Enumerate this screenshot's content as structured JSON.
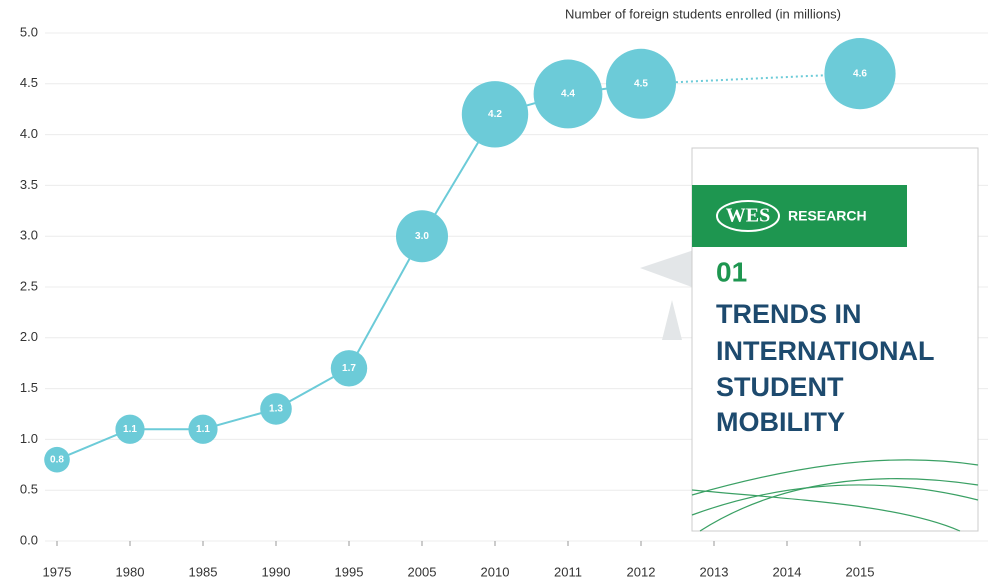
{
  "chart_data": {
    "type": "bubble-line",
    "title": "Number of foreign students enrolled (in millions)",
    "categories": [
      "1975",
      "1980",
      "1985",
      "1990",
      "1995",
      "2005",
      "2010",
      "2011",
      "2012",
      "2013",
      "2014",
      "2015"
    ],
    "values": [
      0.8,
      1.1,
      1.1,
      1.3,
      1.7,
      3.0,
      4.2,
      4.4,
      4.5,
      null,
      null,
      4.6
    ],
    "value_labels": [
      "0.8",
      "1.1",
      "1.1",
      "1.3",
      "1.7",
      "3.0",
      "4.2",
      "4.4",
      "4.5",
      null,
      null,
      "4.6"
    ],
    "color": "#6ccbd8",
    "ylim": [
      0,
      5
    ],
    "yticks": [
      {
        "value": 0,
        "label": "0.0"
      },
      {
        "value": 0.5,
        "label": "0.5"
      },
      {
        "value": 1,
        "label": "1.0"
      },
      {
        "value": 1.5,
        "label": "1.5"
      },
      {
        "value": 2,
        "label": "2.0"
      },
      {
        "value": 2.5,
        "label": "2.5"
      },
      {
        "value": 3,
        "label": "3.0"
      },
      {
        "value": 3.5,
        "label": "3.5"
      },
      {
        "value": 4,
        "label": "4.0"
      },
      {
        "value": 4.5,
        "label": "4.5"
      },
      {
        "value": 5,
        "label": "5.0"
      }
    ],
    "grid": true
  },
  "overlay": {
    "brand": "WES",
    "banner": "RESEARCH",
    "number": "01",
    "title_lines": [
      "TRENDS IN",
      "INTERNATIONAL",
      "STUDENT",
      "MOBILITY"
    ]
  }
}
